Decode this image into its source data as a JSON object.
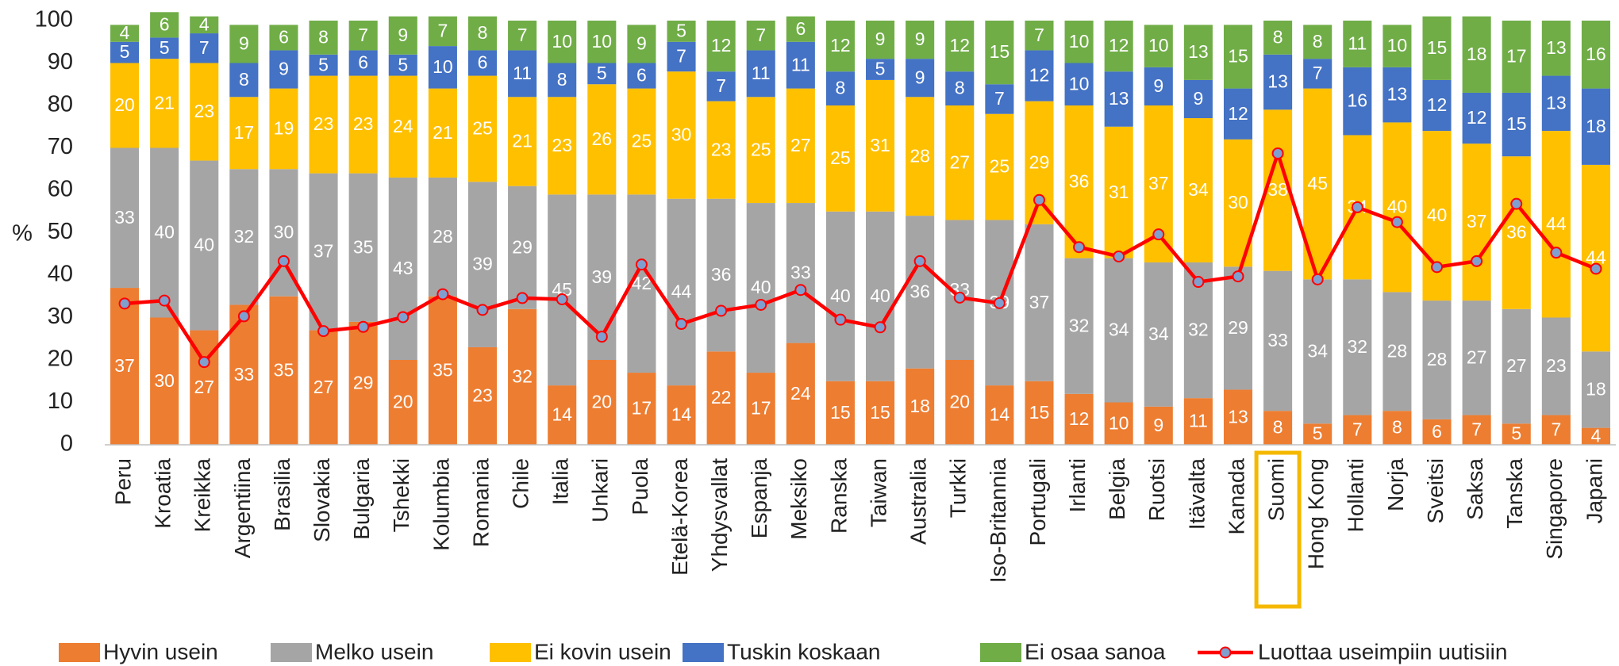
{
  "chart_data": {
    "type": "bar",
    "stacked": true,
    "y_label": "%",
    "ylim": [
      0,
      100
    ],
    "yticks": [
      0,
      10,
      20,
      30,
      40,
      50,
      60,
      70,
      80,
      90,
      100
    ],
    "grid": false,
    "legend": "bottom",
    "highlight": "Suomi",
    "highlight_color": "#f5b800",
    "categories": [
      "Peru",
      "Kroatia",
      "Kreikka",
      "Argentiina",
      "Brasilia",
      "Slovakia",
      "Bulgaria",
      "Tshekki",
      "Kolumbia",
      "Romania",
      "Chile",
      "Italia",
      "Unkari",
      "Puola",
      "Etelä-Korea",
      "Yhdysvallat",
      "Espanja",
      "Meksiko",
      "Ranska",
      "Taiwan",
      "Australia",
      "Turkki",
      "Iso-Britannia",
      "Portugali",
      "Irlanti",
      "Belgia",
      "Ruotsi",
      "Itävalta",
      "Kanada",
      "Suomi",
      "Hong Kong",
      "Hollanti",
      "Norja",
      "Sveitsi",
      "Saksa",
      "Tanska",
      "Singapore",
      "Japani"
    ],
    "series": [
      {
        "name": "Hyvin usein",
        "color": "#ed7d31",
        "values": [
          37,
          30,
          27,
          33,
          35,
          27,
          29,
          20,
          35,
          23,
          32,
          14,
          20,
          17,
          14,
          22,
          17,
          24,
          15,
          15,
          18,
          20,
          14,
          15,
          12,
          10,
          9,
          11,
          13,
          8,
          5,
          7,
          8,
          6,
          7,
          5,
          7,
          4
        ]
      },
      {
        "name": "Melko usein",
        "color": "#a5a5a5",
        "values": [
          33,
          40,
          40,
          32,
          30,
          37,
          35,
          43,
          28,
          39,
          29,
          45,
          39,
          42,
          44,
          36,
          40,
          33,
          40,
          40,
          36,
          33,
          39,
          37,
          32,
          34,
          34,
          32,
          29,
          33,
          34,
          32,
          28,
          28,
          27,
          27,
          23,
          18
        ]
      },
      {
        "name": "Ei kovin usein",
        "color": "#ffc000",
        "values": [
          20,
          21,
          23,
          17,
          19,
          23,
          23,
          24,
          21,
          25,
          21,
          23,
          26,
          25,
          30,
          23,
          25,
          27,
          25,
          31,
          28,
          27,
          25,
          29,
          36,
          31,
          37,
          34,
          30,
          38,
          45,
          34,
          40,
          40,
          37,
          36,
          44,
          44
        ]
      },
      {
        "name": "Tuskin koskaan",
        "color": "#4472c4",
        "values": [
          5,
          5,
          7,
          8,
          9,
          5,
          6,
          5,
          10,
          6,
          11,
          8,
          5,
          6,
          7,
          7,
          11,
          11,
          8,
          5,
          9,
          8,
          7,
          12,
          10,
          13,
          9,
          9,
          12,
          13,
          7,
          16,
          13,
          12,
          12,
          15,
          13,
          18
        ]
      },
      {
        "name": "Ei osaa sanoa",
        "color": "#70ad47",
        "values": [
          4,
          6,
          4,
          9,
          6,
          8,
          7,
          9,
          7,
          8,
          7,
          10,
          10,
          9,
          5,
          12,
          7,
          6,
          12,
          9,
          9,
          12,
          15,
          7,
          10,
          12,
          10,
          13,
          15,
          8,
          8,
          11,
          10,
          15,
          18,
          17,
          13,
          16
        ]
      },
      {
        "name": "Luottaa useimpiin uutisiin",
        "type": "line",
        "color": "#ff0000",
        "marker_color": "#7f9fcf",
        "values": [
          33.3,
          34,
          19.5,
          30.3,
          43.3,
          26.8,
          27.8,
          30.1,
          35.5,
          31.8,
          34.6,
          34.3,
          25.5,
          42.5,
          28.5,
          31.6,
          33,
          36.5,
          29.5,
          27.7,
          43.3,
          34.7,
          33.4,
          57.7,
          46.6,
          44.4,
          49.6,
          38.4,
          39.7,
          68.7,
          39,
          56,
          52.5,
          41.9,
          43.3,
          56.8,
          45.3,
          41.5
        ]
      }
    ]
  }
}
